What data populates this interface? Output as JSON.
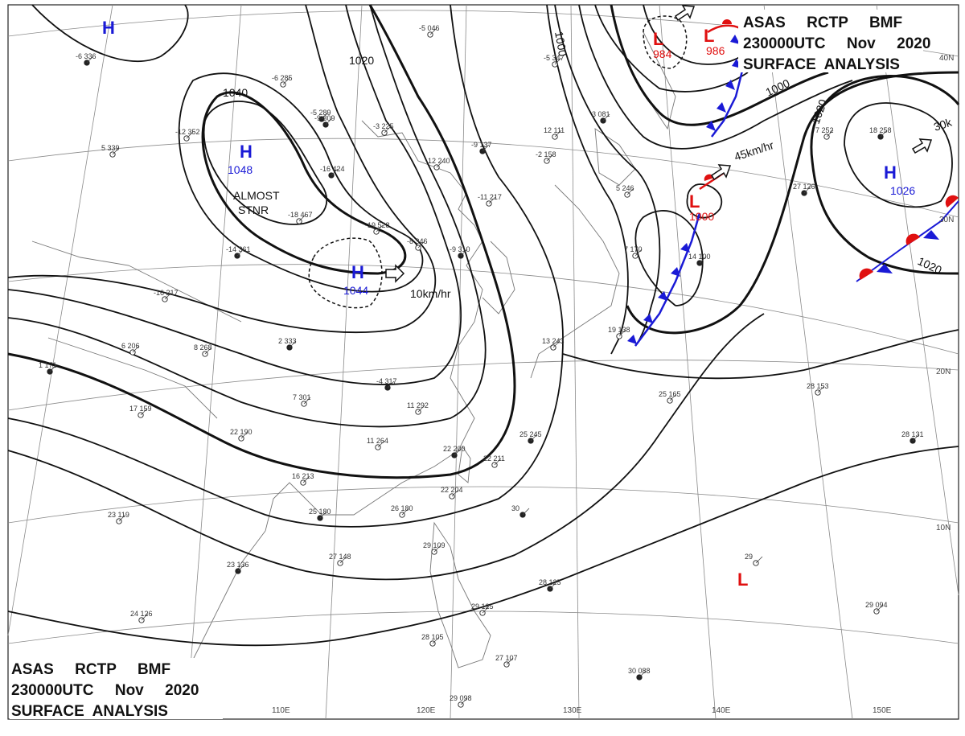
{
  "header": {
    "line1": "ASAS     RCTP     BMF",
    "line2": "230000UTC     Nov     2020",
    "line3": "SURFACE  ANALYSIS"
  },
  "footer": {
    "line1": "ASAS     RCTP     BMF",
    "line2": "230000UTC     Nov     2020",
    "line3": "SURFACE  ANALYSIS"
  },
  "colors": {
    "high": "#1a1ad6",
    "low": "#e01010",
    "front_blue": "#1a1ad6",
    "front_red": "#e01010",
    "grid": "#8a8a8a",
    "coast": "#777777"
  },
  "lon_labels": [
    "110E",
    "120E",
    "130E",
    "140E",
    "150E"
  ],
  "lat_labels": [
    "40N",
    "30N",
    "20N",
    "10N"
  ],
  "isobar_labels": [
    "1040",
    "1020",
    "1000",
    "1000",
    "1020",
    "1020"
  ],
  "centers": [
    {
      "kind": "H",
      "value": ""
    },
    {
      "kind": "H",
      "value": "1048"
    },
    {
      "kind": "H",
      "value": "1044"
    },
    {
      "kind": "H",
      "value": "1026"
    },
    {
      "kind": "L",
      "value": "984"
    },
    {
      "kind": "L",
      "value": "986"
    },
    {
      "kind": "L",
      "value": "1000"
    },
    {
      "kind": "L",
      "value": ""
    }
  ],
  "annotations": {
    "almost_stnr_1": "ALMOST",
    "almost_stnr_2": "STNR",
    "motion_h": "10km/hr",
    "motion_l": "45km/hr",
    "motion_h2": "30k"
  },
  "stations": [
    "-6 336",
    "-6 285",
    "-3 225",
    "-5 289",
    "-12 352",
    "5 339",
    "-16 424",
    "-18 467",
    "-19 528",
    "-14 361",
    "-16 217",
    "-8 346",
    "-9 310",
    "-11 217",
    "-12 240",
    "-9 137",
    "-2 158",
    "12 111",
    "3 081",
    "5 246",
    "7 170",
    "14 100",
    "19 138",
    "13 243",
    "2 333",
    "8 268",
    "6 206",
    "1 171",
    "17 159",
    "7 301",
    "-4 317",
    "11 292",
    "11 264",
    "22 200",
    "22 211",
    "16 213",
    "25 180",
    "26 180",
    "23 119",
    "23 136",
    "27 148",
    "22 204",
    "30",
    "29 109",
    "29 125",
    "28 125",
    "28 105",
    "27 107",
    "30 088",
    "29 098",
    "29 094",
    "28 131",
    "28 153",
    "25 165",
    "27 126",
    "-5 046",
    "-5 347",
    "-9 309",
    "29",
    "7 252",
    "18 258",
    "24 126",
    "22 190",
    "25 245"
  ]
}
